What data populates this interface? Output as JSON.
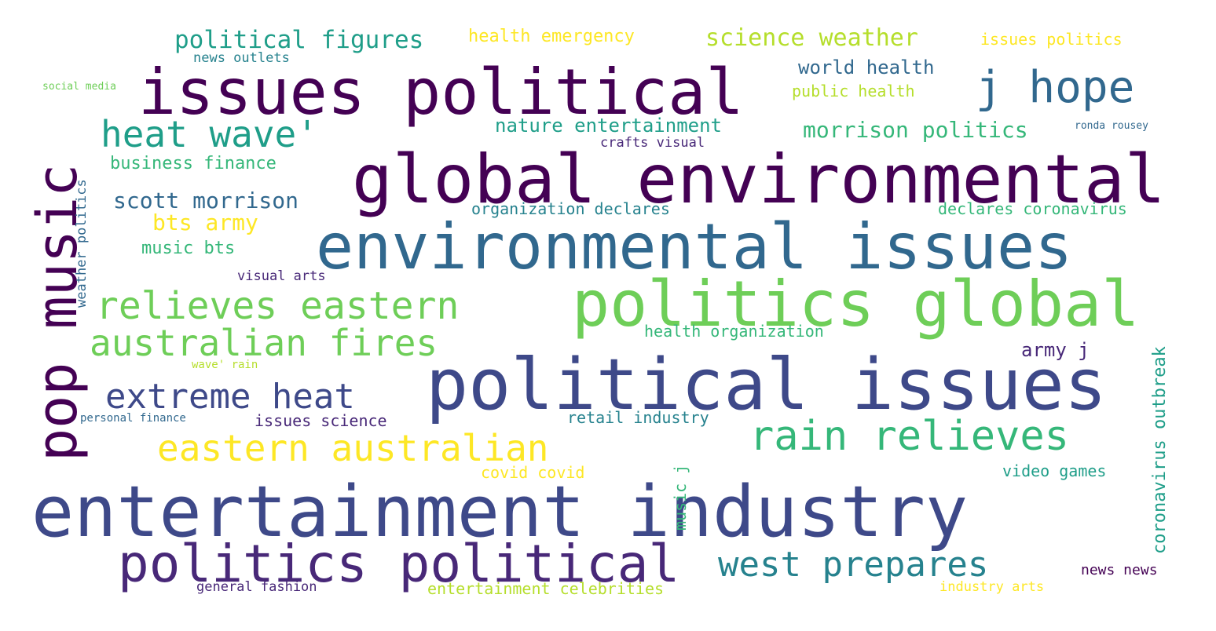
{
  "palette": {
    "dark_purple": "#440154",
    "purple": "#482878",
    "indigo": "#3e4989",
    "blue": "#31688e",
    "teal": "#26828e",
    "green_teal": "#1f9e89",
    "green": "#35b779",
    "light_green": "#6ece58",
    "lime": "#b5de2b",
    "yellow": "#fde725"
  },
  "words": [
    "issues political",
    "global environmental",
    "environmental issues",
    "politics global",
    "political issues",
    "entertainment industry",
    "politics political",
    "pop music",
    "j hope",
    "heat wave'",
    "relieves eastern",
    "australian fires",
    "extreme heat",
    "eastern australian",
    "rain relieves",
    "west prepares",
    "political figures",
    "health emergency",
    "science weather",
    "issues politics",
    "news outlets",
    "world health",
    "public health",
    "social media",
    "nature entertainment",
    "crafts visual",
    "morrison politics",
    "ronda rousey",
    "business finance",
    "scott morrison",
    "bts army",
    "music bts",
    "organization declares",
    "declares coronavirus",
    "visual arts",
    "weather politics",
    "health organization",
    "coronavirus outbreak",
    "army j",
    "wave' rain",
    "personal finance",
    "issues science",
    "retail industry",
    "music j",
    "covid covid",
    "video games",
    "news news",
    "general fashion",
    "entertainment celebrities",
    "industry arts"
  ]
}
